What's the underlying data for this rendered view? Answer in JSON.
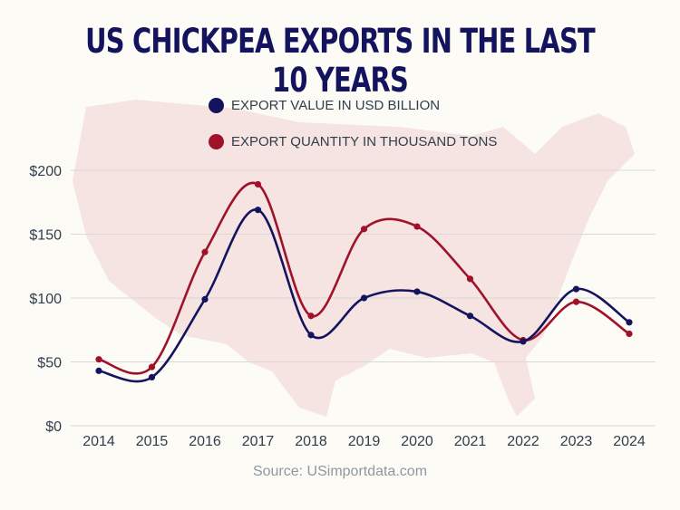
{
  "chart_data": {
    "type": "line",
    "title": "US CHICKPEA EXPORTS IN THE LAST 10 YEARS",
    "x": [
      "2014",
      "2015",
      "2016",
      "2017",
      "2018",
      "2019",
      "2020",
      "2021",
      "2022",
      "2023",
      "2024"
    ],
    "series": [
      {
        "name": "EXPORT VALUE IN USD BILLION",
        "color": "#14145e",
        "values": [
          43,
          38,
          99,
          169,
          71,
          100,
          105,
          86,
          66,
          107,
          81
        ]
      },
      {
        "name": "EXPORT QUANTITY IN THOUSAND TONS",
        "color": "#a0122a",
        "values": [
          52,
          46,
          136,
          189,
          86,
          154,
          156,
          115,
          67,
          97,
          72
        ]
      }
    ],
    "yticks": [
      "$0",
      "$50",
      "$100",
      "$150",
      "$200"
    ],
    "ytick_values": [
      0,
      50,
      100,
      150,
      200
    ],
    "ylim": [
      0,
      200
    ],
    "grid": true,
    "legend": "top-center",
    "source": "Source: USimportdata.com"
  }
}
